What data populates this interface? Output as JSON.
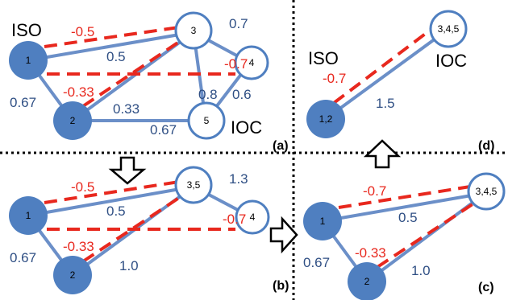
{
  "panels": {
    "a": {
      "label": "(a)",
      "set_left": "ISO",
      "set_right": "IOC",
      "nodes": [
        {
          "id": "1",
          "label": "1",
          "filled": true
        },
        {
          "id": "2",
          "label": "2",
          "filled": true
        },
        {
          "id": "3",
          "label": "3",
          "filled": false
        },
        {
          "id": "4",
          "label": "4",
          "filled": false
        },
        {
          "id": "5",
          "label": "5",
          "filled": false
        }
      ],
      "weights": {
        "w13_neg": "-0.5",
        "w13_pos": "0.5",
        "w14_neg": "-0.7",
        "w23_neg": "-0.33",
        "w12": "0.67",
        "w25": "0.67",
        "w34": "0.7",
        "w35": "0.33",
        "w45a": "0.8",
        "w45b": "0.6"
      }
    },
    "b": {
      "label": "(b)",
      "nodes": [
        {
          "id": "1",
          "label": "1",
          "filled": true
        },
        {
          "id": "2",
          "label": "2",
          "filled": true
        },
        {
          "id": "35",
          "label": "3,5",
          "filled": false
        },
        {
          "id": "4",
          "label": "4",
          "filled": false
        }
      ],
      "weights": {
        "w1_35_neg": "-0.5",
        "w1_35_pos": "0.5",
        "w14_neg": "-0.7",
        "w2_35_neg": "-0.33",
        "w12": "0.67",
        "w2_35_pos": "1.0",
        "w35_4": "1.3"
      }
    },
    "c": {
      "label": "(c)",
      "nodes": [
        {
          "id": "1",
          "label": "1",
          "filled": true
        },
        {
          "id": "2",
          "label": "2",
          "filled": true
        },
        {
          "id": "345",
          "label": "3,4,5",
          "filled": false
        }
      ],
      "weights": {
        "w1_neg": "-0.7",
        "w1_pos": "0.5",
        "w2_neg": "-0.33",
        "w12": "0.67",
        "w2_pos": "1.0"
      }
    },
    "d": {
      "label": "(d)",
      "set_left": "ISO",
      "set_right": "IOC",
      "nodes": [
        {
          "id": "12",
          "label": "1,2",
          "filled": true
        },
        {
          "id": "345",
          "label": "3,4,5",
          "filled": false
        }
      ],
      "weights": {
        "w_neg": "-0.7",
        "w_pos": "1.5"
      }
    }
  },
  "colors": {
    "node_fill": "#4f7fc0",
    "edge_blue": "#6b8fc8",
    "edge_red": "#e8281e",
    "text_blue": "#2f4f84"
  }
}
